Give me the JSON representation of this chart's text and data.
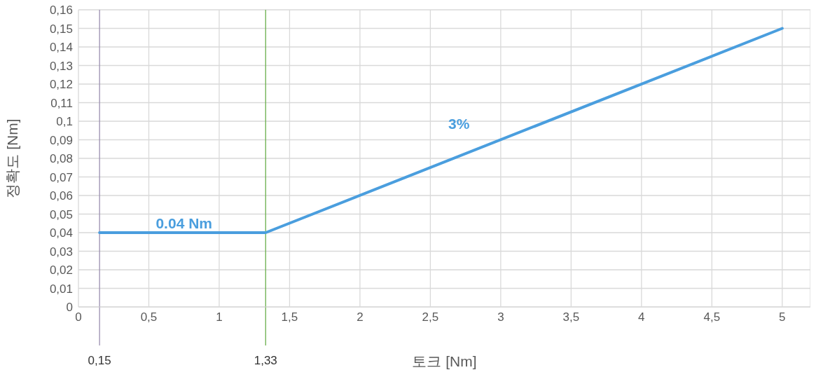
{
  "chart_data": {
    "type": "line",
    "xlabel": "토크 [Nm]",
    "ylabel": "정확도 [Nm]",
    "x": [
      0.15,
      1.33,
      5
    ],
    "series": [
      {
        "color": "#4a9ede",
        "values": [
          0.04,
          0.04,
          0.15
        ]
      }
    ],
    "xlim": [
      0,
      5.2
    ],
    "ylim": [
      0,
      0.16
    ],
    "xticks": [
      0,
      {
        "value": 0.5,
        "label": "0,5"
      },
      1,
      {
        "value": 1.5,
        "label": "1,5"
      },
      2,
      {
        "value": 2.5,
        "label": "2,5"
      },
      3,
      {
        "value": 3.5,
        "label": "3,5"
      },
      4,
      {
        "value": 4.5,
        "label": "4,5"
      },
      5
    ],
    "yticks": [
      0,
      {
        "value": 0.01,
        "label": "0,01"
      },
      {
        "value": 0.02,
        "label": "0,02"
      },
      {
        "value": 0.03,
        "label": "0,03"
      },
      {
        "value": 0.04,
        "label": "0,04"
      },
      {
        "value": 0.05,
        "label": "0,05"
      },
      {
        "value": 0.06,
        "label": "0,06"
      },
      {
        "value": 0.07,
        "label": "0,07"
      },
      {
        "value": 0.08,
        "label": "0,08"
      },
      {
        "value": 0.09,
        "label": "0,09"
      },
      {
        "value": 0.1,
        "label": "0,1"
      },
      {
        "value": 0.11,
        "label": "0,11"
      },
      {
        "value": 0.12,
        "label": "0,12"
      },
      {
        "value": 0.13,
        "label": "0,13"
      },
      {
        "value": 0.14,
        "label": "0,14"
      },
      {
        "value": 0.15,
        "label": "0,15"
      },
      {
        "value": 0.16,
        "label": "0,16"
      }
    ],
    "annotations": [
      {
        "text": "0.04 Nm",
        "x": 0.75,
        "y": 0.04
      },
      "3%"
    ],
    "ref_lines": [
      {
        "axis": "x",
        "value": 0.15,
        "label": "0,15",
        "color": "#9a8fb0"
      },
      {
        "axis": "x",
        "value": 1.33,
        "label": "1,33",
        "color": "#6ab04c"
      }
    ],
    "grid": true,
    "marker": "none",
    "line_style": "solid",
    "legend": false
  }
}
